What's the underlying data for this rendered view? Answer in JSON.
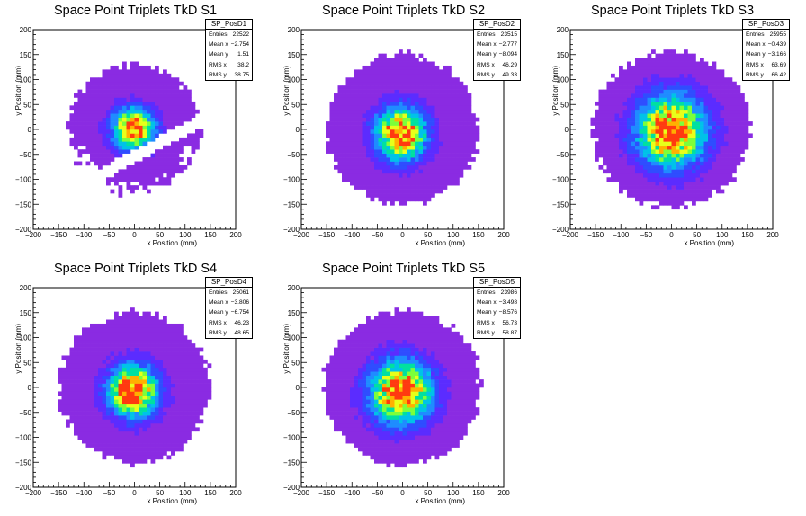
{
  "chart_data": [
    {
      "type": "heatmap",
      "title": "Space Point Triplets TkD S1",
      "xlabel": "x Position (mm)",
      "ylabel": "y Position (mm)",
      "xlim": [
        -200,
        200
      ],
      "ylim": [
        -200,
        200
      ],
      "xticks": [
        "−200",
        "−150",
        "−100",
        "−50",
        "0",
        "50",
        "100",
        "150",
        "200"
      ],
      "yticks": [
        "200",
        "150",
        "100",
        "50",
        "0",
        "−50",
        "−100",
        "−150",
        "−200"
      ],
      "stats": {
        "name": "SP_PosD1",
        "rows": [
          {
            "label": "Entries",
            "value": "22522"
          },
          {
            "label": "Mean x",
            "value": "−2.754"
          },
          {
            "label": "Mean y",
            "value": "1.51"
          },
          {
            "label": "RMS x",
            "value": "38.2"
          },
          {
            "label": "RMS y",
            "value": "38.75"
          }
        ]
      },
      "shape": {
        "radius": 130,
        "mean_x": -2.754,
        "mean_y": 1.51,
        "rms_x": 38.2,
        "rms_y": 38.75,
        "gap": true
      }
    },
    {
      "type": "heatmap",
      "title": "Space Point Triplets TkD S2",
      "xlabel": "x Position (mm)",
      "ylabel": "y Position (mm)",
      "xlim": [
        -200,
        200
      ],
      "ylim": [
        -200,
        200
      ],
      "xticks": [
        "−200",
        "−150",
        "−100",
        "−50",
        "0",
        "50",
        "100",
        "150",
        "200"
      ],
      "yticks": [
        "200",
        "150",
        "100",
        "50",
        "0",
        "−50",
        "−100",
        "−150",
        "−200"
      ],
      "stats": {
        "name": "SP_PosD2",
        "rows": [
          {
            "label": "Entries",
            "value": "23515"
          },
          {
            "label": "Mean x",
            "value": "−2.777"
          },
          {
            "label": "Mean y",
            "value": "−8.094"
          },
          {
            "label": "RMS x",
            "value": "46.29"
          },
          {
            "label": "RMS y",
            "value": "49.33"
          }
        ]
      },
      "shape": {
        "radius": 150,
        "mean_x": -2.777,
        "mean_y": -8.094,
        "rms_x": 46.29,
        "rms_y": 49.33,
        "gap": false
      }
    },
    {
      "type": "heatmap",
      "title": "Space Point Triplets TkD S3",
      "xlabel": "x Position (mm)",
      "ylabel": "y Position (mm)",
      "xlim": [
        -200,
        200
      ],
      "ylim": [
        -200,
        200
      ],
      "xticks": [
        "−200",
        "−150",
        "−100",
        "−50",
        "0",
        "50",
        "100",
        "150",
        "200"
      ],
      "yticks": [
        "200",
        "150",
        "100",
        "50",
        "0",
        "−50",
        "−100",
        "−150",
        "−200"
      ],
      "stats": {
        "name": "SP_PosD3",
        "rows": [
          {
            "label": "Entries",
            "value": "25955"
          },
          {
            "label": "Mean x",
            "value": "−0.439"
          },
          {
            "label": "Mean y",
            "value": "−3.166"
          },
          {
            "label": "RMS x",
            "value": "63.69"
          },
          {
            "label": "RMS y",
            "value": "66.42"
          }
        ]
      },
      "shape": {
        "radius": 155,
        "mean_x": -0.439,
        "mean_y": -3.166,
        "rms_x": 63.69,
        "rms_y": 66.42,
        "gap": false
      }
    },
    {
      "type": "heatmap",
      "title": "Space Point Triplets TkD S4",
      "xlabel": "x Position (mm)",
      "ylabel": "y Position (mm)",
      "xlim": [
        -200,
        200
      ],
      "ylim": [
        -200,
        200
      ],
      "xticks": [
        "−200",
        "−150",
        "−100",
        "−50",
        "0",
        "50",
        "100",
        "150",
        "200"
      ],
      "yticks": [
        "200",
        "150",
        "100",
        "50",
        "0",
        "−50",
        "−100",
        "−150",
        "−200"
      ],
      "stats": {
        "name": "SP_PosD4",
        "rows": [
          {
            "label": "Entries",
            "value": "25061"
          },
          {
            "label": "Mean x",
            "value": "−3.806"
          },
          {
            "label": "Mean y",
            "value": "−6.754"
          },
          {
            "label": "RMS x",
            "value": "46.23"
          },
          {
            "label": "RMS y",
            "value": "48.65"
          }
        ]
      },
      "shape": {
        "radius": 150,
        "mean_x": -3.806,
        "mean_y": -6.754,
        "rms_x": 46.23,
        "rms_y": 48.65,
        "gap": false
      }
    },
    {
      "type": "heatmap",
      "title": "Space Point Triplets TkD S5",
      "xlabel": "x Position (mm)",
      "ylabel": "y Position (mm)",
      "xlim": [
        -200,
        200
      ],
      "ylim": [
        -200,
        200
      ],
      "xticks": [
        "−200",
        "−150",
        "−100",
        "−50",
        "0",
        "50",
        "100",
        "150",
        "200"
      ],
      "yticks": [
        "200",
        "150",
        "100",
        "50",
        "0",
        "−50",
        "−100",
        "−150",
        "−200"
      ],
      "stats": {
        "name": "SP_PosD5",
        "rows": [
          {
            "label": "Entries",
            "value": "23986"
          },
          {
            "label": "Mean x",
            "value": "−3.498"
          },
          {
            "label": "Mean y",
            "value": "−8.576"
          },
          {
            "label": "RMS x",
            "value": "56.73"
          },
          {
            "label": "RMS y",
            "value": "58.87"
          }
        ]
      },
      "shape": {
        "radius": 155,
        "mean_x": -3.498,
        "mean_y": -8.576,
        "rms_x": 56.73,
        "rms_y": 58.87,
        "gap": false
      }
    }
  ],
  "colors": {
    "palette": [
      "#8a2be2",
      "#5b2cff",
      "#2f4dff",
      "#1f8cff",
      "#00c2e8",
      "#00e0a0",
      "#7cff3a",
      "#e8ff1a",
      "#ffb000",
      "#ff3a10"
    ],
    "axis": "#000000"
  }
}
